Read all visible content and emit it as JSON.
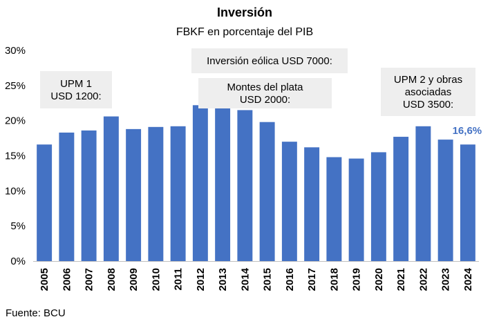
{
  "chart_data": {
    "type": "bar",
    "title": "Inversión",
    "subtitle": "FBKF en porcentaje del PIB",
    "categories": [
      "2005",
      "2006",
      "2007",
      "2008",
      "2009",
      "2010",
      "2011",
      "2012",
      "2013",
      "2014",
      "2015",
      "2016",
      "2017",
      "2018",
      "2019",
      "2020",
      "2021",
      "2022",
      "2023",
      "2024"
    ],
    "values": [
      16.6,
      18.3,
      18.6,
      20.6,
      18.8,
      19.1,
      19.2,
      22.2,
      21.9,
      21.5,
      19.8,
      17.0,
      16.2,
      14.8,
      14.6,
      15.5,
      17.7,
      19.2,
      17.3,
      16.6
    ],
    "ylim": [
      0,
      30
    ],
    "yticks": [
      "0%",
      "5%",
      "10%",
      "15%",
      "20%",
      "25%",
      "30%"
    ],
    "bar_color": "#4472C4",
    "last_value_label": "16,6%",
    "last_value_color": "#4472C4",
    "annotations": [
      {
        "lines": [
          "UPM 1",
          "USD 1200:"
        ]
      },
      {
        "lines": [
          "Inversión eólica USD 7000:"
        ]
      },
      {
        "lines": [
          "Montes del plata",
          "USD 2000:"
        ]
      },
      {
        "lines": [
          "UPM 2 y obras",
          "asociadas",
          "USD 3500:"
        ]
      }
    ],
    "annotation_bg": "#EEEEEE",
    "source": "Fuente: BCU"
  }
}
